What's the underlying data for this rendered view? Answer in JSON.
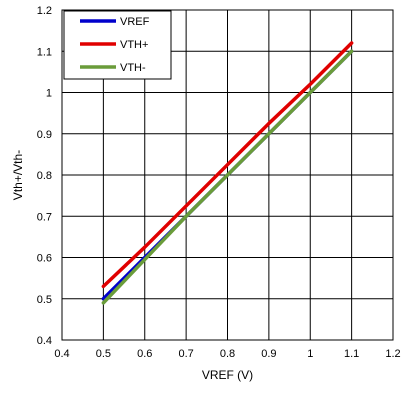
{
  "chart_data": {
    "type": "line",
    "title": "",
    "xlabel": "VREF (V)",
    "ylabel": "Vth+/Vth-",
    "xlim": [
      0.4,
      1.2
    ],
    "ylim": [
      0.4,
      1.2
    ],
    "x_ticks": [
      "0.4",
      "0.5",
      "0.6",
      "0.7",
      "0.8",
      "0.9",
      "1",
      "1.1",
      "1.2"
    ],
    "y_ticks": [
      "0.4",
      "0.5",
      "0.6",
      "0.7",
      "0.8",
      "0.9",
      "1",
      "1.1",
      "1.2"
    ],
    "grid": true,
    "legend_position": "top-left",
    "series": [
      {
        "name": "VREF",
        "color": "#0000cc",
        "points": [
          [
            0.5,
            0.5
          ],
          [
            0.6,
            0.6
          ],
          [
            0.7,
            0.7
          ],
          [
            0.8,
            0.8
          ],
          [
            0.9,
            0.9
          ],
          [
            1.0,
            1.0
          ],
          [
            1.1,
            1.1
          ]
        ]
      },
      {
        "name": "VTH+",
        "color": "#e00000",
        "points": [
          [
            0.5,
            0.53
          ],
          [
            0.6,
            0.625
          ],
          [
            0.7,
            0.725
          ],
          [
            0.8,
            0.825
          ],
          [
            0.9,
            0.925
          ],
          [
            1.0,
            1.02
          ],
          [
            1.1,
            1.12
          ]
        ]
      },
      {
        "name": "VTH-",
        "color": "#6a9c3a",
        "points": [
          [
            0.5,
            0.49
          ],
          [
            0.6,
            0.595
          ],
          [
            0.7,
            0.7
          ],
          [
            0.8,
            0.8
          ],
          [
            0.9,
            0.9
          ],
          [
            1.0,
            1.0
          ],
          [
            1.1,
            1.1
          ]
        ]
      }
    ]
  }
}
